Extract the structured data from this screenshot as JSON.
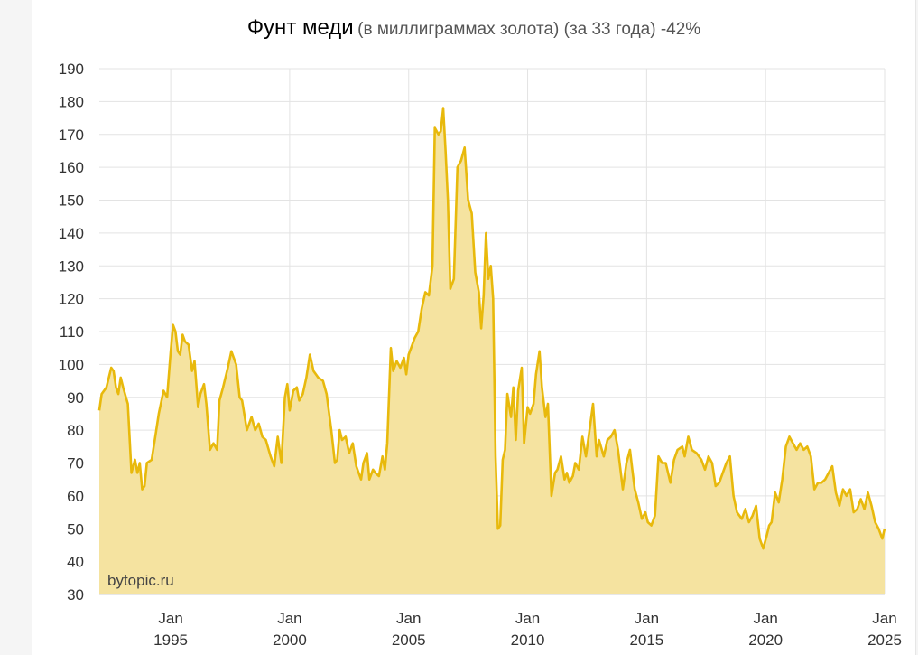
{
  "chart_data": {
    "type": "area",
    "title": "Фунт меди",
    "subtitle": "(в миллиграммах золота) (за 33 года) -42%",
    "watermark": "bytopic.ru",
    "ylim": [
      30,
      190
    ],
    "yticks": [
      30,
      40,
      50,
      60,
      70,
      80,
      90,
      100,
      110,
      120,
      130,
      140,
      150,
      160,
      170,
      180,
      190
    ],
    "xlim": [
      1992.0,
      2025.0
    ],
    "xticks": [
      {
        "x": 1995,
        "month": "Jan",
        "year": "1995"
      },
      {
        "x": 2000,
        "month": "Jan",
        "year": "2000"
      },
      {
        "x": 2005,
        "month": "Jan",
        "year": "2005"
      },
      {
        "x": 2010,
        "month": "Jan",
        "year": "2010"
      },
      {
        "x": 2015,
        "month": "Jan",
        "year": "2015"
      },
      {
        "x": 2020,
        "month": "Jan",
        "year": "2020"
      },
      {
        "x": 2025,
        "month": "Jan",
        "year": "2025"
      }
    ],
    "grid": true,
    "colors": {
      "line": "#e8b90c",
      "fill": "#f5e3a0",
      "grid": "#e3e3e3"
    },
    "x": [
      1992.0,
      1992.1,
      1992.3,
      1992.5,
      1992.6,
      1992.7,
      1992.8,
      1992.9,
      1993.0,
      1993.2,
      1993.35,
      1993.5,
      1993.6,
      1993.7,
      1993.8,
      1993.9,
      1994.0,
      1994.2,
      1994.35,
      1994.5,
      1994.7,
      1994.85,
      1995.0,
      1995.1,
      1995.2,
      1995.3,
      1995.4,
      1995.5,
      1995.6,
      1995.75,
      1995.9,
      1996.0,
      1996.15,
      1996.25,
      1996.4,
      1996.5,
      1996.65,
      1996.8,
      1996.95,
      1997.05,
      1997.2,
      1997.4,
      1997.55,
      1997.75,
      1997.9,
      1998.0,
      1998.2,
      1998.4,
      1998.55,
      1998.7,
      1998.85,
      1999.0,
      1999.2,
      1999.35,
      1999.5,
      1999.65,
      1999.8,
      1999.9,
      2000.0,
      2000.15,
      2000.3,
      2000.4,
      2000.55,
      2000.7,
      2000.85,
      2001.0,
      2001.2,
      2001.4,
      2001.55,
      2001.75,
      2001.9,
      2002.0,
      2002.1,
      2002.2,
      2002.35,
      2002.5,
      2002.65,
      2002.8,
      2003.0,
      2003.1,
      2003.25,
      2003.35,
      2003.5,
      2003.6,
      2003.75,
      2003.9,
      2004.0,
      2004.1,
      2004.25,
      2004.35,
      2004.5,
      2004.65,
      2004.8,
      2004.9,
      2005.0,
      2005.1,
      2005.25,
      2005.4,
      2005.55,
      2005.7,
      2005.85,
      2006.0,
      2006.1,
      2006.25,
      2006.35,
      2006.45,
      2006.55,
      2006.65,
      2006.75,
      2006.9,
      2007.05,
      2007.2,
      2007.35,
      2007.5,
      2007.65,
      2007.8,
      2007.95,
      2008.05,
      2008.15,
      2008.25,
      2008.35,
      2008.45,
      2008.55,
      2008.65,
      2008.75,
      2008.85,
      2008.95,
      2009.05,
      2009.15,
      2009.3,
      2009.4,
      2009.5,
      2009.6,
      2009.75,
      2009.85,
      2010.0,
      2010.1,
      2010.25,
      2010.35,
      2010.5,
      2010.6,
      2010.75,
      2010.85,
      2011.0,
      2011.15,
      2011.25,
      2011.4,
      2011.55,
      2011.65,
      2011.75,
      2011.9,
      2012.0,
      2012.15,
      2012.3,
      2012.45,
      2012.6,
      2012.75,
      2012.9,
      2013.0,
      2013.2,
      2013.35,
      2013.5,
      2013.65,
      2013.8,
      2014.0,
      2014.15,
      2014.3,
      2014.4,
      2014.5,
      2014.65,
      2014.8,
      2014.95,
      2015.05,
      2015.2,
      2015.35,
      2015.5,
      2015.65,
      2015.8,
      2016.0,
      2016.15,
      2016.3,
      2016.5,
      2016.6,
      2016.75,
      2016.9,
      2017.1,
      2017.3,
      2017.45,
      2017.6,
      2017.75,
      2017.9,
      2018.05,
      2018.2,
      2018.35,
      2018.5,
      2018.65,
      2018.8,
      2019.0,
      2019.15,
      2019.3,
      2019.45,
      2019.6,
      2019.75,
      2019.9,
      2020.05,
      2020.15,
      2020.25,
      2020.4,
      2020.55,
      2020.7,
      2020.85,
      2021.0,
      2021.15,
      2021.3,
      2021.45,
      2021.6,
      2021.75,
      2021.9,
      2022.05,
      2022.2,
      2022.35,
      2022.5,
      2022.65,
      2022.8,
      2022.95,
      2023.1,
      2023.25,
      2023.4,
      2023.55,
      2023.7,
      2023.85,
      2024.0,
      2024.15,
      2024.3,
      2024.45,
      2024.6,
      2024.75,
      2024.9,
      2025.0
    ],
    "y": [
      86,
      91,
      93,
      99,
      98,
      93,
      91,
      96,
      93,
      88,
      67,
      71,
      67,
      70,
      62,
      63,
      70,
      71,
      78,
      85,
      92,
      90,
      104,
      112,
      110,
      104,
      103,
      109,
      107,
      106,
      98,
      101,
      87,
      91,
      94,
      88,
      74,
      76,
      74,
      89,
      93,
      99,
      104,
      100,
      90,
      89,
      80,
      84,
      80,
      82,
      78,
      77,
      72,
      69,
      78,
      70,
      90,
      94,
      86,
      92,
      93,
      89,
      91,
      96,
      103,
      98,
      96,
      95,
      91,
      80,
      70,
      71,
      80,
      77,
      78,
      73,
      76,
      69,
      65,
      70,
      73,
      65,
      68,
      67,
      66,
      72,
      68,
      76,
      105,
      98,
      101,
      99,
      102,
      97,
      103,
      105,
      108,
      110,
      117,
      122,
      121,
      130,
      172,
      170,
      171,
      178,
      165,
      150,
      123,
      126,
      160,
      162,
      166,
      150,
      146,
      128,
      122,
      111,
      121,
      140,
      126,
      130,
      120,
      72,
      50,
      51,
      71,
      74,
      91,
      84,
      93,
      77,
      92,
      99,
      76,
      87,
      85,
      88,
      97,
      104,
      93,
      84,
      88,
      60,
      67,
      68,
      72,
      65,
      67,
      64,
      66,
      70,
      68,
      78,
      72,
      80,
      88,
      72,
      77,
      72,
      77,
      78,
      80,
      74,
      62,
      70,
      74,
      68,
      62,
      58,
      53,
      55,
      52,
      51,
      54,
      72,
      70,
      70,
      64,
      71,
      74,
      75,
      72,
      78,
      74,
      73,
      71,
      68,
      72,
      70,
      63,
      64,
      67,
      70,
      72,
      60,
      55,
      53,
      56,
      52,
      54,
      57,
      47,
      44,
      48,
      51,
      52,
      61,
      58,
      65,
      75,
      78,
      76,
      74,
      76,
      74,
      75,
      72,
      62,
      64,
      64,
      65,
      67,
      69,
      61,
      57,
      62,
      60,
      62,
      55,
      56,
      59,
      56,
      61,
      57,
      52,
      50,
      47,
      50
    ]
  }
}
